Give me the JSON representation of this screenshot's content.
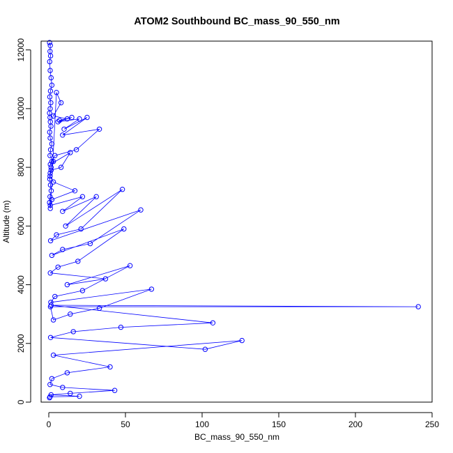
{
  "chart_data": {
    "type": "scatter",
    "title": "ATOM2 Southbound BC_mass_90_550_nm",
    "xlabel": "BC_mass_90_550_nm",
    "ylabel": "Altitude (m)",
    "xlim": [
      -5,
      250
    ],
    "ylim": [
      0,
      12300
    ],
    "x_ticks": [
      0,
      50,
      100,
      150,
      200,
      250
    ],
    "y_ticks": [
      0,
      2000,
      4000,
      6000,
      8000,
      10000,
      12000
    ],
    "x_tick_labels": [
      "0",
      "50",
      "100",
      "150",
      "200",
      "250"
    ],
    "y_tick_labels": [
      "0",
      "2000",
      "4000",
      "6000",
      "8000",
      "10000",
      "12000"
    ],
    "grid": false,
    "series_color": "#0000ff",
    "marker": "open-circle",
    "connected": true,
    "series": [
      {
        "x": [
          0.5,
          1,
          0.8,
          1.2,
          0.6,
          0.9,
          1.5,
          2,
          1.1,
          0.7,
          1.3,
          0.9,
          0.5,
          0.8,
          1,
          1.4,
          0.6,
          0.9,
          2,
          1.2,
          0.8,
          3,
          1.5,
          0.9,
          0.7,
          1.1,
          1.6,
          0.8,
          0.5,
          1,
          5,
          8,
          3,
          12,
          7,
          15,
          6,
          20,
          10,
          25,
          9,
          33,
          18,
          4,
          2,
          1,
          14,
          8,
          1.5,
          0.8,
          3,
          17,
          2,
          1,
          22,
          9,
          31,
          11,
          48,
          21,
          5,
          1.2,
          60,
          27,
          9,
          2,
          49,
          19,
          6,
          1,
          37,
          12,
          53,
          22,
          4,
          1.3,
          67,
          33,
          14,
          3,
          1.1,
          241,
          1.5,
          107,
          47,
          16,
          1.2,
          102,
          126,
          3,
          40,
          12,
          2,
          0.8,
          9,
          43,
          14,
          1.5,
          20,
          0.8,
          0.5
        ],
        "y": [
          12250,
          12150,
          11950,
          11800,
          11600,
          11300,
          11050,
          10800,
          10600,
          10400,
          10200,
          10000,
          9850,
          9700,
          9550,
          9400,
          9200,
          9000,
          8800,
          8600,
          8400,
          8200,
          8000,
          7800,
          7600,
          7400,
          7200,
          7000,
          6800,
          6600,
          10550,
          10200,
          9750,
          9650,
          9600,
          9700,
          9550,
          9650,
          9300,
          9700,
          9100,
          9300,
          8600,
          8400,
          8200,
          8100,
          8500,
          8000,
          7900,
          7700,
          7500,
          7200,
          6900,
          6700,
          7000,
          6500,
          7000,
          6000,
          7250,
          5900,
          5700,
          5500,
          6550,
          5400,
          5200,
          5000,
          5900,
          4800,
          4600,
          4400,
          4200,
          4000,
          4650,
          3800,
          3600,
          3400,
          3850,
          3200,
          3000,
          2800,
          3250,
          3250,
          3300,
          2700,
          2550,
          2400,
          2200,
          1800,
          2100,
          1600,
          1200,
          1000,
          800,
          600,
          500,
          400,
          300,
          250,
          200,
          180,
          150
        ]
      }
    ]
  }
}
